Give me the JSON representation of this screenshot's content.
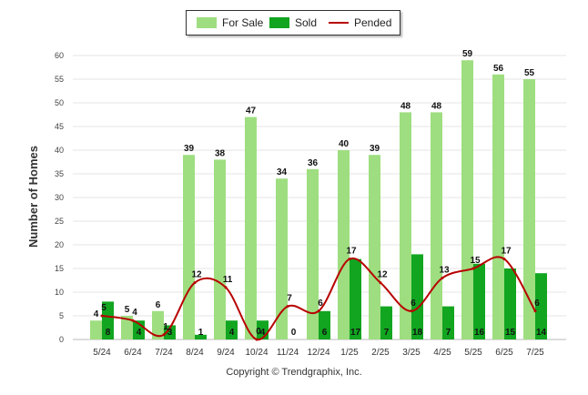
{
  "chart_data": {
    "type": "bar",
    "title": "",
    "xlabel": "",
    "ylabel": "Number of Homes",
    "ylim": [
      0,
      60
    ],
    "yticks": [
      0,
      5,
      10,
      15,
      20,
      25,
      30,
      35,
      40,
      45,
      50,
      55,
      60
    ],
    "categories": [
      "5/24",
      "6/24",
      "7/24",
      "8/24",
      "9/24",
      "10/24",
      "11/24",
      "12/24",
      "1/25",
      "2/25",
      "3/25",
      "4/25",
      "5/25",
      "6/25",
      "7/25"
    ],
    "series": [
      {
        "name": "For Sale",
        "kind": "bar",
        "color": "#9ede80",
        "values": [
          4,
          5,
          6,
          39,
          38,
          47,
          34,
          36,
          40,
          39,
          48,
          48,
          59,
          56,
          55
        ]
      },
      {
        "name": "Sold",
        "kind": "bar",
        "color": "#12a520",
        "values": [
          8,
          4,
          3,
          1,
          4,
          4,
          0,
          6,
          17,
          7,
          18,
          7,
          16,
          15,
          14
        ]
      },
      {
        "name": "Pended",
        "kind": "line",
        "color": "#b80000",
        "values": [
          5,
          4,
          1,
          12,
          11,
          0,
          7,
          6,
          17,
          12,
          6,
          13,
          15,
          17,
          6
        ]
      }
    ],
    "legend_position": "top-center",
    "grid": true
  },
  "footer": {
    "copyright": "Copyright © Trendgraphix, Inc."
  }
}
